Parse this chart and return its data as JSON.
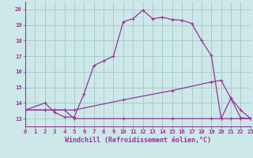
{
  "xlabel": "Windchill (Refroidissement éolien,°C)",
  "background_color": "#cce8e8",
  "grid_color": "#aacccc",
  "line_color": "#993399",
  "xlim": [
    0,
    23
  ],
  "ylim": [
    12.5,
    20.5
  ],
  "xticks": [
    0,
    1,
    2,
    3,
    4,
    5,
    6,
    7,
    8,
    9,
    10,
    11,
    12,
    13,
    14,
    15,
    16,
    17,
    18,
    19,
    20,
    21,
    22,
    23
  ],
  "yticks": [
    13,
    14,
    15,
    16,
    17,
    18,
    19,
    20
  ],
  "line1_x": [
    0,
    2,
    3,
    4,
    5,
    6,
    7,
    8,
    9,
    10,
    11,
    12,
    13,
    14,
    15,
    16,
    17,
    18,
    19,
    20,
    21,
    22,
    23
  ],
  "line1_y": [
    13.55,
    14.0,
    13.4,
    13.1,
    13.1,
    14.6,
    16.4,
    16.7,
    17.0,
    19.2,
    19.4,
    19.95,
    19.4,
    19.5,
    19.35,
    19.3,
    19.1,
    18.0,
    17.05,
    13.0,
    14.3,
    13.05,
    13.0
  ],
  "line2_x": [
    0,
    2,
    3,
    4,
    5,
    10,
    15,
    19,
    20,
    21,
    22,
    23
  ],
  "line2_y": [
    13.55,
    13.55,
    13.55,
    13.55,
    13.55,
    14.2,
    14.8,
    15.35,
    15.45,
    14.3,
    13.55,
    13.0
  ],
  "line3_x": [
    0,
    2,
    3,
    4,
    5,
    10,
    15,
    19,
    20,
    21,
    22,
    23
  ],
  "line3_y": [
    13.55,
    13.55,
    13.55,
    13.55,
    13.0,
    13.0,
    13.0,
    13.0,
    13.0,
    13.0,
    13.0,
    13.0
  ],
  "axis_fontsize": 6.0,
  "tick_fontsize": 5.2
}
